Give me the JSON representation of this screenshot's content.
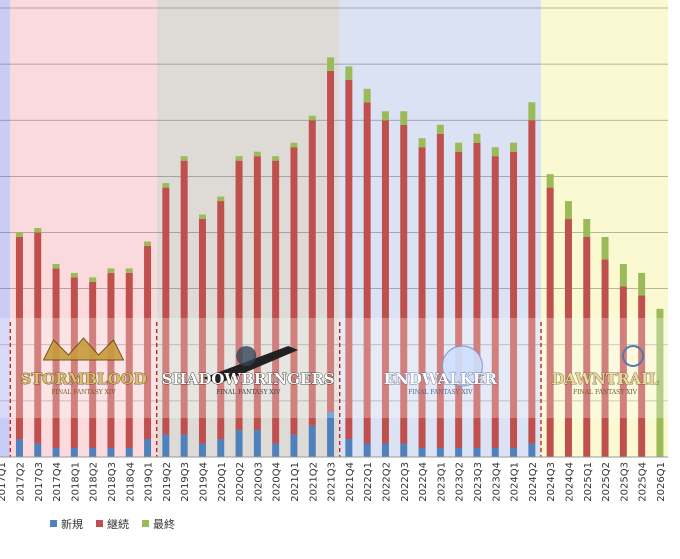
{
  "chart_data": {
    "type": "bar",
    "stacked": true,
    "title": "",
    "xlabel": "",
    "ylabel": "",
    "ylim": [
      0,
      100
    ],
    "grid": true,
    "legend_position": "bottom-left",
    "categories": [
      "2017Q1",
      "2017Q2",
      "2017Q3",
      "2017Q4",
      "2018Q1",
      "2018Q2",
      "2018Q3",
      "2018Q4",
      "2019Q1",
      "2019Q2",
      "2019Q3",
      "2019Q4",
      "2020Q1",
      "2020Q2",
      "2020Q3",
      "2020Q4",
      "2021Q1",
      "2021Q2",
      "2021Q3",
      "2021Q4",
      "2022Q1",
      "2022Q2",
      "2022Q3",
      "2022Q4",
      "2023Q1",
      "2023Q2",
      "2023Q3",
      "2023Q4",
      "2024Q1",
      "2024Q2",
      "2024Q3",
      "2024Q4",
      "2025Q1",
      "2025Q2",
      "2025Q3",
      "2025Q4",
      "2026Q1"
    ],
    "series": [
      {
        "name": "新規",
        "color": "#4f81bd",
        "values": [
          0,
          4,
          3,
          2,
          2,
          2,
          2,
          2,
          4,
          5,
          5,
          3,
          4,
          6,
          6,
          3,
          5,
          7,
          10,
          4,
          3,
          3,
          3,
          2,
          2,
          2,
          2,
          2,
          2,
          3,
          0,
          0,
          0,
          0,
          0,
          0,
          0
        ]
      },
      {
        "name": "継続",
        "color": "#c0504d",
        "values": [
          0,
          45,
          47,
          40,
          38,
          37,
          39,
          39,
          43,
          55,
          61,
          50,
          53,
          60,
          61,
          63,
          64,
          68,
          76,
          80,
          76,
          72,
          71,
          67,
          70,
          66,
          68,
          65,
          66,
          72,
          60,
          53,
          49,
          44,
          38,
          36,
          0
        ]
      },
      {
        "name": "最終",
        "color": "#9bbb59",
        "values": [
          0,
          1,
          1,
          1,
          1,
          1,
          1,
          1,
          1,
          1,
          1,
          1,
          1,
          1,
          1,
          1,
          1,
          1,
          3,
          3,
          3,
          2,
          3,
          2,
          2,
          2,
          2,
          2,
          2,
          4,
          3,
          4,
          4,
          5,
          5,
          5,
          33
        ]
      }
    ],
    "expansion_eras": [
      {
        "name": "STORMBLOOD",
        "subtitle": "FINAL FANTASY XIV",
        "start": "2017Q2",
        "end": "2019Q1",
        "color": "#fadadd"
      },
      {
        "name": "SHADOWBRINGERS",
        "subtitle": "FINAL FANTASY XIV",
        "start": "2019Q2",
        "end": "2021Q3",
        "color": "#dedbd6"
      },
      {
        "name": "ENDWALKER",
        "subtitle": "FINAL FANTASY XIV",
        "start": "2021Q4",
        "end": "2024Q2",
        "color": "#dbe2f4"
      },
      {
        "name": "DAWNTRAIL",
        "subtitle": "FINAL FANTASY XIV",
        "start": "2024Q3",
        "end": "2026Q1",
        "color": "#fbf9d2"
      }
    ]
  }
}
